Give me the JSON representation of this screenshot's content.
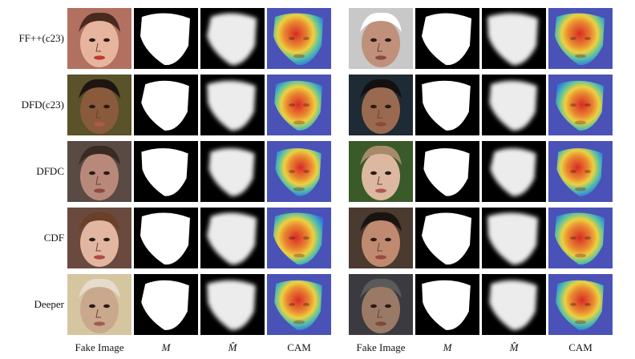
{
  "rows": [
    "FF++(c23)",
    "DFD(c23)",
    "DFDC",
    "CDF",
    "Deeper"
  ],
  "columns": [
    "Fake Image",
    "M",
    "M̂",
    "CAM",
    "Fake Image",
    "M",
    "M̂",
    "CAM"
  ],
  "columns_math": [
    false,
    true,
    true,
    false,
    false,
    true,
    true,
    false
  ],
  "column_icons": [
    "face-photo",
    "binary-mask",
    "soft-mask",
    "heatmap-overlay",
    "face-photo",
    "binary-mask",
    "soft-mask",
    "heatmap-overlay"
  ],
  "colors": {
    "mask_white": "#ffffff",
    "mask_background": "#000000",
    "cam_background": "#4a52b8",
    "cam_hot": "#e0281e",
    "cam_warm": "#f5d83a",
    "cam_cool": "#2a7ee8"
  }
}
